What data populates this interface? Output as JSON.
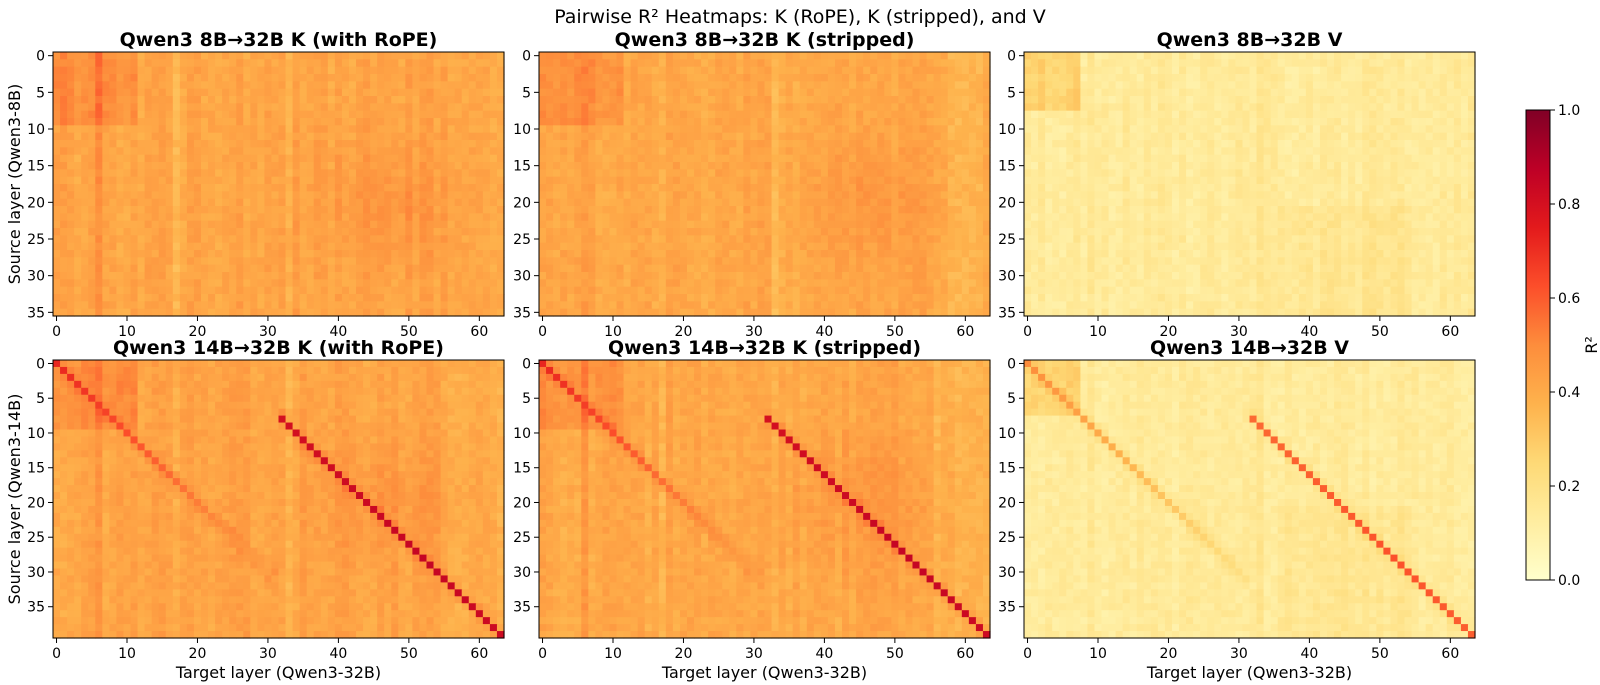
{
  "figure": {
    "suptitle": "Pairwise R² Heatmaps: K (RoPE), K (stripped), and V"
  },
  "colorbar": {
    "label": "R²",
    "ticks": [
      "0.0",
      "0.2",
      "0.4",
      "0.6",
      "0.8",
      "1.0"
    ],
    "range": [
      0.0,
      1.0
    ],
    "colormap": "YlOrRd",
    "colors": [
      "#ffffcc",
      "#ffeda0",
      "#fed976",
      "#feb24c",
      "#fd8d3c",
      "#fc4e2a",
      "#e31a1c",
      "#bd0026",
      "#800026"
    ]
  },
  "chart_data": [
    {
      "type": "heatmap",
      "title": "Qwen3 8B→32B  K (with RoPE)",
      "xlabel": "",
      "ylabel": "Source layer (Qwen3-8B)",
      "x_range": [
        0,
        63
      ],
      "y_range": [
        0,
        35
      ],
      "xticks": [
        0,
        10,
        20,
        30,
        40,
        50,
        60
      ],
      "yticks": [
        0,
        5,
        10,
        15,
        20,
        25,
        30,
        35
      ],
      "kind": "K",
      "pattern": "no-diagonal",
      "base": 0.42
    },
    {
      "type": "heatmap",
      "title": "Qwen3 8B→32B  K (stripped)",
      "xlabel": "",
      "ylabel": "",
      "x_range": [
        0,
        63
      ],
      "y_range": [
        0,
        35
      ],
      "xticks": [
        0,
        10,
        20,
        30,
        40,
        50,
        60
      ],
      "yticks": [
        0,
        5,
        10,
        15,
        20,
        25,
        30,
        35
      ],
      "kind": "K",
      "pattern": "no-diagonal",
      "base": 0.41
    },
    {
      "type": "heatmap",
      "title": "Qwen3 8B→32B  V",
      "xlabel": "",
      "ylabel": "",
      "x_range": [
        0,
        63
      ],
      "y_range": [
        0,
        35
      ],
      "xticks": [
        0,
        10,
        20,
        30,
        40,
        50,
        60
      ],
      "yticks": [
        0,
        5,
        10,
        15,
        20,
        25,
        30,
        35
      ],
      "kind": "V",
      "pattern": "no-diagonal",
      "base": 0.14
    },
    {
      "type": "heatmap",
      "title": "Qwen3 14B→32B  K (with RoPE)",
      "xlabel": "Target layer (Qwen3-32B)",
      "ylabel": "Source layer (Qwen3-14B)",
      "x_range": [
        0,
        63
      ],
      "y_range": [
        0,
        39
      ],
      "xticks": [
        0,
        10,
        20,
        30,
        40,
        50,
        60
      ],
      "yticks": [
        0,
        5,
        10,
        15,
        20,
        25,
        30,
        35
      ],
      "kind": "K",
      "pattern": "two-diagonals",
      "base": 0.42,
      "diagonals": [
        {
          "x_start": 0,
          "y_start": 0,
          "length": 32,
          "peak": 0.72
        },
        {
          "x_start": 32,
          "y_start": 8,
          "length": 32,
          "peak": 0.85
        }
      ]
    },
    {
      "type": "heatmap",
      "title": "Qwen3 14B→32B  K (stripped)",
      "xlabel": "Target layer (Qwen3-32B)",
      "ylabel": "",
      "x_range": [
        0,
        63
      ],
      "y_range": [
        0,
        39
      ],
      "xticks": [
        0,
        10,
        20,
        30,
        40,
        50,
        60
      ],
      "yticks": [
        0,
        5,
        10,
        15,
        20,
        25,
        30,
        35
      ],
      "kind": "K",
      "pattern": "two-diagonals",
      "base": 0.41,
      "diagonals": [
        {
          "x_start": 0,
          "y_start": 0,
          "length": 32,
          "peak": 0.72
        },
        {
          "x_start": 32,
          "y_start": 8,
          "length": 32,
          "peak": 0.85
        }
      ]
    },
    {
      "type": "heatmap",
      "title": "Qwen3 14B→32B  V",
      "xlabel": "Target layer (Qwen3-32B)",
      "ylabel": "",
      "x_range": [
        0,
        63
      ],
      "y_range": [
        0,
        39
      ],
      "xticks": [
        0,
        10,
        20,
        30,
        40,
        50,
        60
      ],
      "yticks": [
        0,
        5,
        10,
        15,
        20,
        25,
        30,
        35
      ],
      "kind": "V",
      "pattern": "two-diagonals",
      "base": 0.14,
      "diagonals": [
        {
          "x_start": 0,
          "y_start": 0,
          "length": 32,
          "peak": 0.5
        },
        {
          "x_start": 32,
          "y_start": 8,
          "length": 32,
          "peak": 0.62
        }
      ]
    }
  ]
}
